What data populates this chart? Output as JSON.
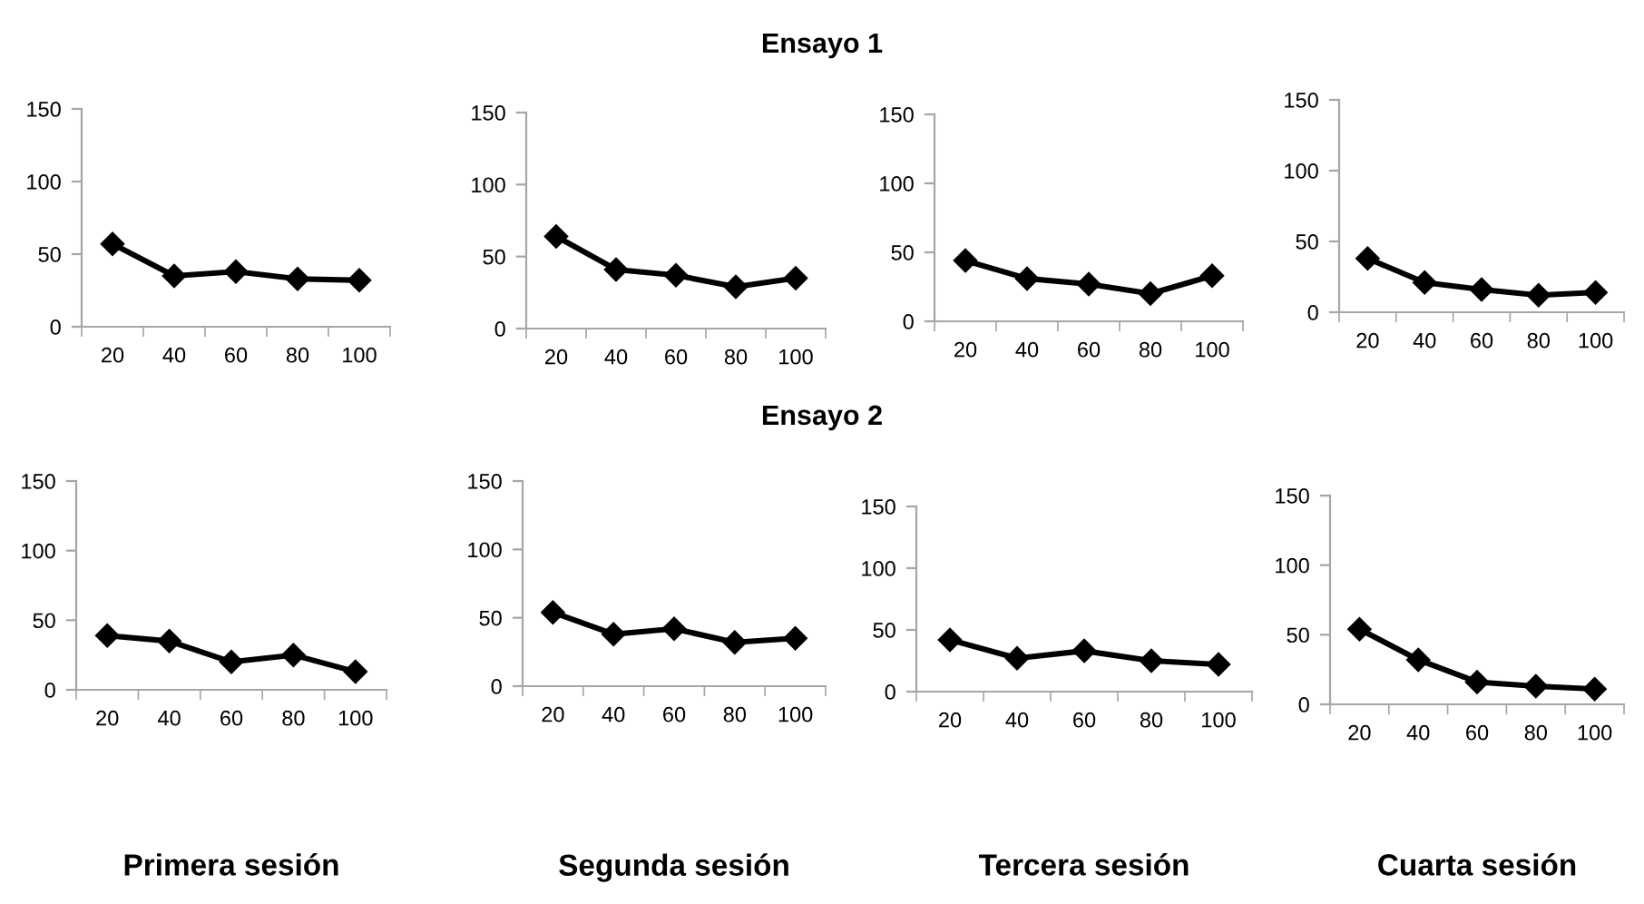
{
  "chart_data": [
    {
      "type": "line",
      "annotations": [
        "Ensayo 1"
      ],
      "categories": [
        "20",
        "40",
        "60",
        "80",
        "100"
      ],
      "values": [
        57,
        35,
        38,
        33,
        32
      ],
      "color": "#000000",
      "marker": "diamond",
      "ylim": [
        0,
        150
      ],
      "yticks": [
        0,
        50,
        100,
        150
      ],
      "grid": false
    },
    {
      "type": "line",
      "categories": [
        "20",
        "40",
        "60",
        "80",
        "100"
      ],
      "values": [
        64,
        41,
        37,
        29,
        35
      ],
      "color": "#000000",
      "marker": "diamond",
      "ylim": [
        0,
        150
      ],
      "yticks": [
        0,
        50,
        100,
        150
      ],
      "grid": false
    },
    {
      "type": "line",
      "categories": [
        "20",
        "40",
        "60",
        "80",
        "100"
      ],
      "values": [
        44,
        31,
        27,
        20,
        33
      ],
      "color": "#000000",
      "marker": "diamond",
      "ylim": [
        0,
        150
      ],
      "yticks": [
        0,
        50,
        100,
        150
      ],
      "grid": false
    },
    {
      "type": "line",
      "categories": [
        "20",
        "40",
        "60",
        "80",
        "100"
      ],
      "values": [
        38,
        21,
        16,
        12,
        14
      ],
      "color": "#000000",
      "marker": "diamond",
      "ylim": [
        0,
        150
      ],
      "yticks": [
        0,
        50,
        100,
        150
      ],
      "grid": false
    },
    {
      "type": "line",
      "annotations": [
        "Ensayo 2"
      ],
      "xlabel": "Primera sesión",
      "categories": [
        "20",
        "40",
        "60",
        "80",
        "100"
      ],
      "values": [
        39,
        35,
        20,
        25,
        13
      ],
      "color": "#000000",
      "marker": "diamond",
      "ylim": [
        0,
        150
      ],
      "yticks": [
        0,
        50,
        100,
        150
      ],
      "grid": false
    },
    {
      "type": "line",
      "xlabel": "Segunda sesión",
      "categories": [
        "20",
        "40",
        "60",
        "80",
        "100"
      ],
      "values": [
        54,
        38,
        42,
        32,
        35
      ],
      "color": "#000000",
      "marker": "diamond",
      "ylim": [
        0,
        150
      ],
      "yticks": [
        0,
        50,
        100,
        150
      ],
      "grid": false
    },
    {
      "type": "line",
      "xlabel": "Tercera sesión",
      "categories": [
        "20",
        "40",
        "60",
        "80",
        "100"
      ],
      "values": [
        42,
        27,
        33,
        25,
        22
      ],
      "color": "#000000",
      "marker": "diamond",
      "ylim": [
        0,
        150
      ],
      "yticks": [
        0,
        50,
        100,
        150
      ],
      "grid": false
    },
    {
      "type": "line",
      "xlabel": "Cuarta sesión",
      "categories": [
        "20",
        "40",
        "60",
        "80",
        "100"
      ],
      "values": [
        54,
        32,
        16,
        13,
        11
      ],
      "color": "#000000",
      "marker": "diamond",
      "ylim": [
        0,
        150
      ],
      "yticks": [
        0,
        50,
        100,
        150
      ],
      "grid": false
    }
  ]
}
